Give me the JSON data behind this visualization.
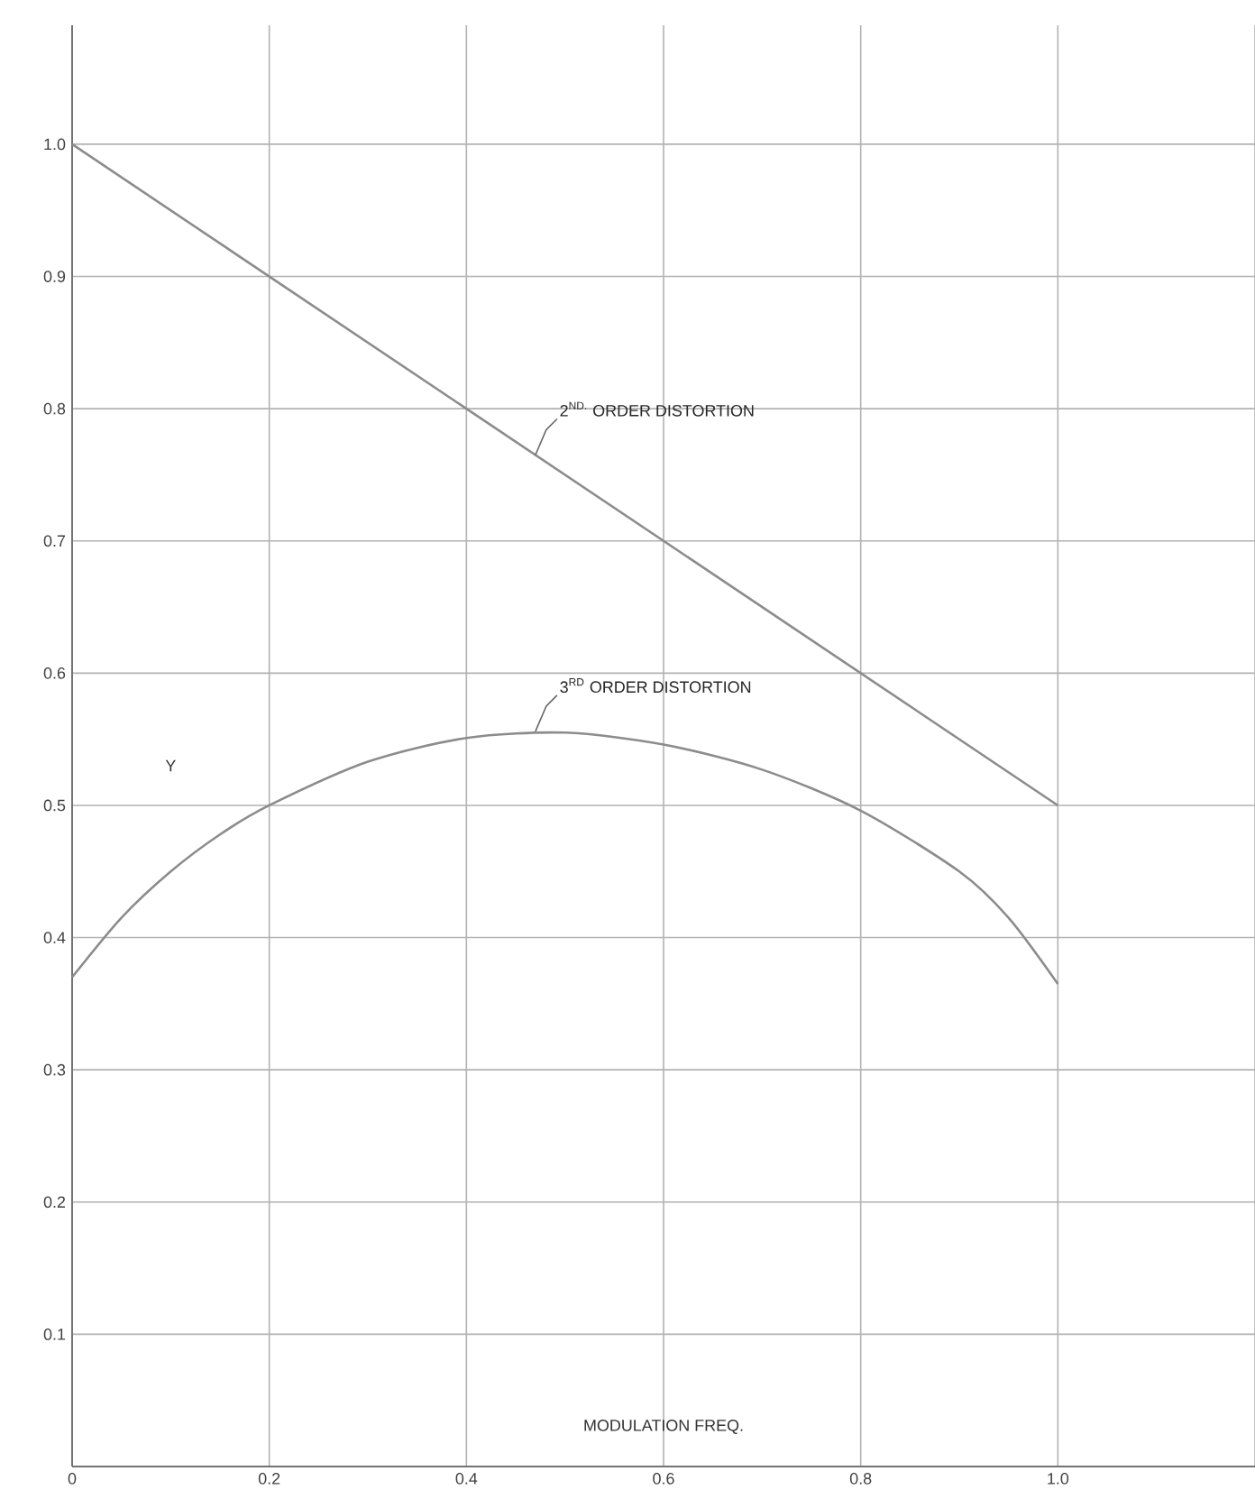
{
  "chart_data": {
    "type": "line",
    "xlabel": "MODULATION FREQ.",
    "ylabel": "Y",
    "xlim": [
      0,
      1.2
    ],
    "ylim": [
      0,
      1.09
    ],
    "xticks": [
      {
        "value": 0,
        "label": "0"
      },
      {
        "value": 0.2,
        "label": "0.2"
      },
      {
        "value": 0.4,
        "label": "0.4"
      },
      {
        "value": 0.6,
        "label": "0.6"
      },
      {
        "value": 0.8,
        "label": "0.8"
      },
      {
        "value": 1.0,
        "label": "1.0"
      },
      {
        "value": 1.2,
        "label": null
      }
    ],
    "yticks": [
      {
        "value": 0,
        "label": null
      },
      {
        "value": 0.1,
        "label": "0.1"
      },
      {
        "value": 0.2,
        "label": "0.2"
      },
      {
        "value": 0.3,
        "label": "0.3"
      },
      {
        "value": 0.4,
        "label": "0.4"
      },
      {
        "value": 0.5,
        "label": "0.5"
      },
      {
        "value": 0.6,
        "label": "0.6"
      },
      {
        "value": 0.7,
        "label": "0.7"
      },
      {
        "value": 0.8,
        "label": "0.8"
      },
      {
        "value": 0.9,
        "label": "0.9"
      },
      {
        "value": 1.0,
        "label": "1.0"
      }
    ],
    "grid": true,
    "marker": "none",
    "line_style": "solid",
    "series": [
      {
        "color": "#8c8c8c",
        "x": [
          0,
          1.0
        ],
        "values": [
          1.0,
          0.5
        ]
      },
      {
        "color": "#8c8c8c",
        "x": [
          0,
          0.05,
          0.1,
          0.15,
          0.2,
          0.3,
          0.4,
          0.5,
          0.6,
          0.7,
          0.8,
          0.9,
          0.95,
          1.0
        ],
        "values": [
          0.37,
          0.415,
          0.45,
          0.478,
          0.5,
          0.533,
          0.551,
          0.555,
          0.546,
          0.527,
          0.496,
          0.45,
          0.415,
          0.365
        ]
      }
    ],
    "annotations": [
      {
        "text": "2$^{ND.}$ ORDER  DISTORTION",
        "x": 0.47,
        "y": 0.765
      },
      {
        "text": "3$^{RD}$ ORDER           DISTORTION",
        "x": 0.47,
        "y": 0.556
      }
    ]
  }
}
